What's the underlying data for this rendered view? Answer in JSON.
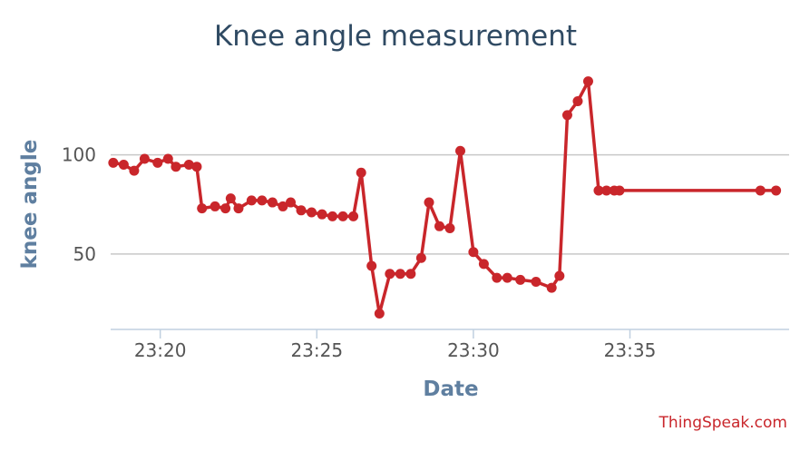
{
  "chart_data": {
    "type": "line",
    "title": "Knee angle measurement",
    "xlabel": "Date",
    "ylabel": "knee angle",
    "x_ticks": [
      "23:20",
      "23:25",
      "23:30",
      "23:35"
    ],
    "y_ticks": [
      50,
      100
    ],
    "xlim": [
      "23:18:25",
      "23:40:05"
    ],
    "ylim": [
      12,
      146
    ],
    "grid": true,
    "legend": "none",
    "line_color": "#c9262b",
    "series": [
      {
        "x": [
          "23:18:30",
          "23:18:50",
          "23:19:10",
          "23:19:30",
          "23:19:55",
          "23:20:15",
          "23:20:30",
          "23:20:55",
          "23:21:10",
          "23:21:20",
          "23:21:45",
          "23:22:05",
          "23:22:15",
          "23:22:30",
          "23:22:55",
          "23:23:15",
          "23:23:35",
          "23:23:55",
          "23:24:10",
          "23:24:30",
          "23:24:50",
          "23:25:10",
          "23:25:30",
          "23:25:50",
          "23:26:10",
          "23:26:25",
          "23:26:45",
          "23:27:00",
          "23:27:20",
          "23:27:40",
          "23:28:00",
          "23:28:20",
          "23:28:35",
          "23:28:55",
          "23:29:15",
          "23:29:35",
          "23:30:00",
          "23:30:20",
          "23:30:45",
          "23:31:05",
          "23:31:30",
          "23:32:00",
          "23:32:30",
          "23:32:45",
          "23:33:00",
          "23:33:20",
          "23:33:40",
          "23:34:00",
          "23:34:15",
          "23:34:30",
          "23:34:40",
          "23:39:10",
          "23:39:40"
        ],
        "y": [
          96,
          95,
          92,
          98,
          96,
          98,
          94,
          95,
          94,
          73,
          74,
          73,
          78,
          73,
          77,
          77,
          76,
          74,
          76,
          72,
          71,
          70,
          69,
          69,
          69,
          91,
          44,
          20,
          40,
          40,
          40,
          48,
          76,
          64,
          63,
          102,
          51,
          45,
          38,
          38,
          37,
          36,
          33,
          39,
          120,
          127,
          137,
          82,
          82,
          82,
          82,
          82,
          82
        ]
      }
    ]
  },
  "credit": "ThingSpeak.com"
}
